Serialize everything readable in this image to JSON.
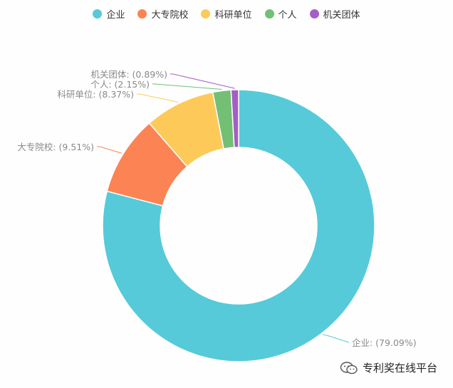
{
  "chart_data": {
    "type": "pie",
    "variant": "donut",
    "slices": [
      {
        "name": "企业",
        "value": 79.09,
        "label": "企业: (79.09%)",
        "color": "#56CAD9"
      },
      {
        "name": "大专院校",
        "value": 9.51,
        "label": "大专院校: (9.51%)",
        "color": "#FC8354"
      },
      {
        "name": "科研单位",
        "value": 8.37,
        "label": "科研单位: (8.37%)",
        "color": "#FDCA5A"
      },
      {
        "name": "个人",
        "value": 2.15,
        "label": "个人: (2.15%)",
        "color": "#73BF74"
      },
      {
        "name": "机关团体",
        "value": 0.89,
        "label": "机关团体: (0.89%)",
        "color": "#A45EC5"
      }
    ],
    "legend_position": "top-center"
  },
  "watermark": {
    "text": "专利奖在线平台",
    "icon": "wechat-icon"
  }
}
